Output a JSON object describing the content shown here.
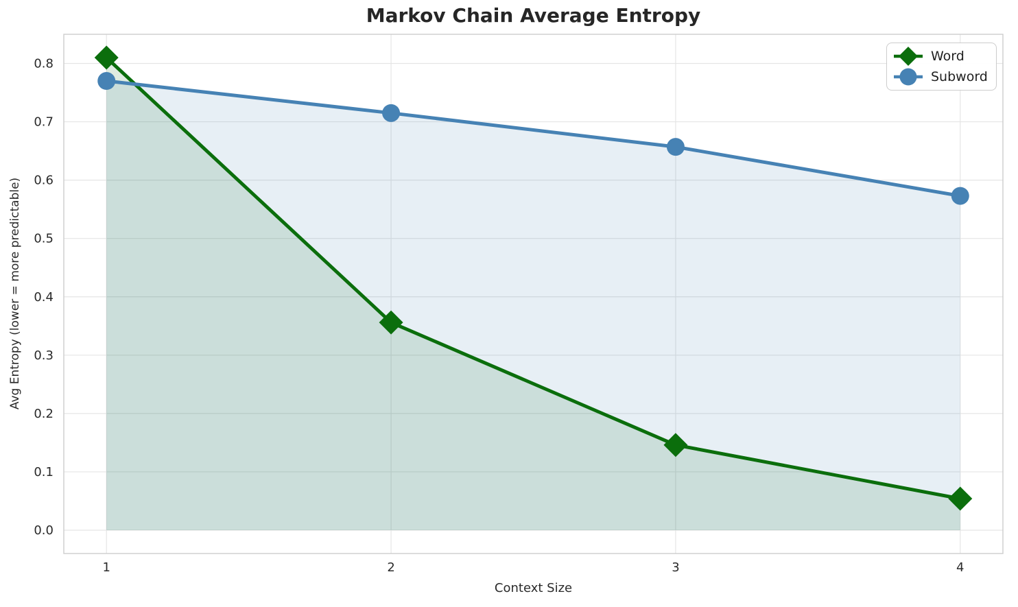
{
  "chart_data": {
    "type": "line",
    "title": "Markov Chain Average Entropy",
    "xlabel": "Context Size",
    "ylabel": "Avg Entropy (lower = more predictable)",
    "x": [
      1,
      2,
      3,
      4
    ],
    "series": [
      {
        "name": "Word",
        "marker": "diamond",
        "color": "#0b6e0c",
        "values": [
          0.81,
          0.356,
          0.146,
          0.054
        ],
        "area_fill_to_zero": true
      },
      {
        "name": "Subword",
        "marker": "circle",
        "color": "#4682b4",
        "values": [
          0.77,
          0.715,
          0.657,
          0.573
        ],
        "area_fill_to_zero": true
      }
    ],
    "xticks": [
      "1",
      "2",
      "3",
      "4"
    ],
    "yticks": [
      "0.0",
      "0.1",
      "0.2",
      "0.3",
      "0.4",
      "0.5",
      "0.6",
      "0.7",
      "0.8"
    ],
    "xlim": [
      0.85,
      4.15
    ],
    "ylim": [
      -0.04,
      0.85
    ],
    "grid": true,
    "grid_color": "#e5e5e5",
    "spine_color": "#cdcdcd",
    "tick_color": "#2a2a2a",
    "fill_opacity": 0.13,
    "legend_position": "upper right"
  }
}
